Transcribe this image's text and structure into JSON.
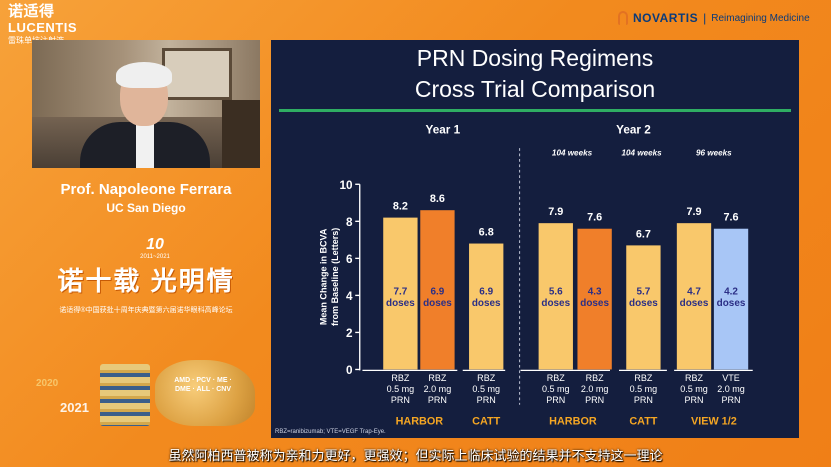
{
  "brand": {
    "logo_main": "诺适得",
    "logo_latin": "LUCENTIS",
    "logo_sub": "雷珠单抗注射液"
  },
  "novartis": {
    "name": "NOVARTIS",
    "separator": "|",
    "tagline": "Reimagining Medicine"
  },
  "speaker": {
    "name": "Prof. Napoleone Ferrara",
    "affiliation": "UC San Diego"
  },
  "anniversary": {
    "number": "10",
    "years": "2011~2021"
  },
  "slogan": "诺十载 光明情",
  "event_text": "诺适得®中国获批十周年庆典暨第六届诺华眼科高峰论坛",
  "deco": {
    "year_a": "2020",
    "year_b": "2021",
    "gold_text": "AMD · PCV · ME · DME · ALL · CNV"
  },
  "slide": {
    "title_line1": "PRN Dosing Regimens",
    "title_line2": "Cross Trial Comparison",
    "footnote": "RBZ=ranibizumab; VTE=VEGF Trap-Eye."
  },
  "subtitle": "虽然阿柏西普被称为亲和力更好，更强效；但实际上临床试验的结果并不支持这一理论",
  "chart_data": {
    "type": "bar",
    "ylabel": "Mean Change in BCVA from Baseline (Letters)",
    "ylim": [
      0,
      10
    ],
    "yticks": [
      0,
      2,
      4,
      6,
      8,
      10
    ],
    "period_headers": [
      "Year 1",
      "Year 2"
    ],
    "week_notes": [
      "104 weeks",
      "104 weeks",
      "96 weeks"
    ],
    "colors": {
      "rbz_05": "#f9c86b",
      "rbz_20": "#f07f2a",
      "vte_20": "#a8c6f6",
      "value_text": "#ffffff",
      "dose_text": "#2b2f86",
      "trial_text": "#f5a623",
      "axis": "#ffffff",
      "slide_bg": "#141e3e",
      "accent_rule": "#2fae63"
    },
    "bars": [
      {
        "period": "Year 1",
        "trial": "HARBOR",
        "drug": "RBZ",
        "dose": "0.5 mg",
        "regimen": "PRN",
        "value": 8.2,
        "value_label": "8.2",
        "doses": "7.7",
        "doses_word": "doses",
        "color": "rbz_05"
      },
      {
        "period": "Year 1",
        "trial": "HARBOR",
        "drug": "RBZ",
        "dose": "2.0 mg",
        "regimen": "PRN",
        "value": 8.6,
        "value_label": "8.6",
        "doses": "6.9",
        "doses_word": "doses",
        "color": "rbz_20"
      },
      {
        "period": "Year 1",
        "trial": "CATT",
        "drug": "RBZ",
        "dose": "0.5 mg",
        "regimen": "PRN",
        "value": 6.8,
        "value_label": "6.8",
        "doses": "6.9",
        "doses_word": "doses",
        "color": "rbz_05"
      },
      {
        "period": "Year 2",
        "trial": "HARBOR",
        "drug": "RBZ",
        "dose": "0.5 mg",
        "regimen": "PRN",
        "value": 7.9,
        "value_label": "7.9",
        "doses": "5.6",
        "doses_word": "doses",
        "color": "rbz_05"
      },
      {
        "period": "Year 2",
        "trial": "HARBOR",
        "drug": "RBZ",
        "dose": "2.0 mg",
        "regimen": "PRN",
        "value": 7.6,
        "value_label": "7.6",
        "doses": "4.3",
        "doses_word": "doses",
        "color": "rbz_20"
      },
      {
        "period": "Year 2",
        "trial": "CATT",
        "drug": "RBZ",
        "dose": "0.5 mg",
        "regimen": "PRN",
        "value": 6.7,
        "value_label": "6.7",
        "doses": "5.7",
        "doses_word": "doses",
        "color": "rbz_05"
      },
      {
        "period": "Year 2",
        "trial": "VIEW 1/2",
        "drug": "RBZ",
        "dose": "0.5 mg",
        "regimen": "PRN",
        "value": 7.9,
        "value_label": "7.9",
        "doses": "4.7",
        "doses_word": "doses",
        "color": "rbz_05"
      },
      {
        "period": "Year 2",
        "trial": "VIEW 1/2",
        "drug": "VTE",
        "dose": "2.0 mg",
        "regimen": "PRN",
        "value": 7.6,
        "value_label": "7.6",
        "doses": "4.2",
        "doses_word": "doses",
        "color": "vte_20"
      }
    ],
    "trial_groups": [
      "HARBOR",
      "CATT",
      "HARBOR",
      "CATT",
      "VIEW 1/2"
    ]
  }
}
